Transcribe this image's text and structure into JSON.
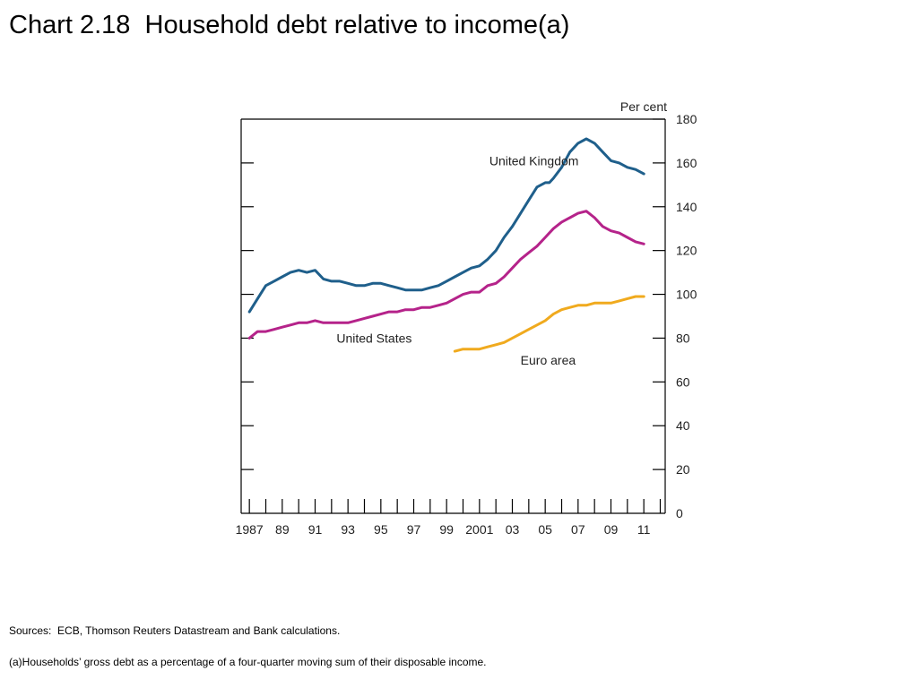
{
  "slide": {
    "title": "Chart 2.18  Household debt relative to income(a)",
    "sources": "Sources:  ECB, Thomson Reuters Datastream and Bank calculations.",
    "footnote": "(a)Households’ gross debt as a percentage of a four-quarter moving sum of their disposable income."
  },
  "chart_data": {
    "type": "line",
    "title": "Household debt relative to income(a)",
    "xlabel": "",
    "ylabel": "Per cent",
    "ylim": [
      0,
      180
    ],
    "xlim": [
      1986.5,
      2012.3
    ],
    "y_ticks": [
      0,
      20,
      40,
      60,
      80,
      100,
      120,
      140,
      160,
      180
    ],
    "x_ticks": [
      {
        "x": 1987,
        "label": "1987"
      },
      {
        "x": 1989,
        "label": "89"
      },
      {
        "x": 1991,
        "label": "91"
      },
      {
        "x": 1993,
        "label": "93"
      },
      {
        "x": 1995,
        "label": "95"
      },
      {
        "x": 1997,
        "label": "97"
      },
      {
        "x": 1999,
        "label": "99"
      },
      {
        "x": 2001,
        "label": "2001"
      },
      {
        "x": 2003,
        "label": "03"
      },
      {
        "x": 2005,
        "label": "05"
      },
      {
        "x": 2007,
        "label": "07"
      },
      {
        "x": 2009,
        "label": "09"
      },
      {
        "x": 2011,
        "label": "11"
      }
    ],
    "grid": false,
    "series": [
      {
        "name": "United Kingdom",
        "color": "#1f5f8b",
        "points": [
          [
            1987.0,
            92
          ],
          [
            1987.5,
            98
          ],
          [
            1988.0,
            104
          ],
          [
            1988.5,
            106
          ],
          [
            1989.0,
            108
          ],
          [
            1989.5,
            110
          ],
          [
            1990.0,
            111
          ],
          [
            1990.5,
            110
          ],
          [
            1991.0,
            111
          ],
          [
            1991.5,
            107
          ],
          [
            1992.0,
            106
          ],
          [
            1992.5,
            106
          ],
          [
            1993.0,
            105
          ],
          [
            1993.5,
            104
          ],
          [
            1994.0,
            104
          ],
          [
            1994.5,
            105
          ],
          [
            1995.0,
            105
          ],
          [
            1995.5,
            104
          ],
          [
            1996.0,
            103
          ],
          [
            1996.5,
            102
          ],
          [
            1997.0,
            102
          ],
          [
            1997.5,
            102
          ],
          [
            1998.0,
            103
          ],
          [
            1998.5,
            104
          ],
          [
            1999.0,
            106
          ],
          [
            1999.5,
            108
          ],
          [
            2000.0,
            110
          ],
          [
            2000.5,
            112
          ],
          [
            2001.0,
            113
          ],
          [
            2001.5,
            116
          ],
          [
            2002.0,
            120
          ],
          [
            2002.5,
            126
          ],
          [
            2003.0,
            131
          ],
          [
            2003.5,
            137
          ],
          [
            2004.0,
            143
          ],
          [
            2004.5,
            149
          ],
          [
            2005.0,
            151
          ],
          [
            2005.25,
            151
          ],
          [
            2005.5,
            153
          ],
          [
            2006.0,
            158
          ],
          [
            2006.5,
            165
          ],
          [
            2007.0,
            169
          ],
          [
            2007.5,
            171
          ],
          [
            2008.0,
            169
          ],
          [
            2008.5,
            165
          ],
          [
            2009.0,
            161
          ],
          [
            2009.5,
            160
          ],
          [
            2010.0,
            158
          ],
          [
            2010.5,
            157
          ],
          [
            2011.0,
            155
          ]
        ]
      },
      {
        "name": "United States",
        "color": "#b5238a",
        "points": [
          [
            1987.0,
            80
          ],
          [
            1987.5,
            83
          ],
          [
            1988.0,
            83
          ],
          [
            1988.5,
            84
          ],
          [
            1989.0,
            85
          ],
          [
            1989.5,
            86
          ],
          [
            1990.0,
            87
          ],
          [
            1990.5,
            87
          ],
          [
            1991.0,
            88
          ],
          [
            1991.5,
            87
          ],
          [
            1992.0,
            87
          ],
          [
            1992.5,
            87
          ],
          [
            1993.0,
            87
          ],
          [
            1993.5,
            88
          ],
          [
            1994.0,
            89
          ],
          [
            1994.5,
            90
          ],
          [
            1995.0,
            91
          ],
          [
            1995.5,
            92
          ],
          [
            1996.0,
            92
          ],
          [
            1996.5,
            93
          ],
          [
            1997.0,
            93
          ],
          [
            1997.5,
            94
          ],
          [
            1998.0,
            94
          ],
          [
            1998.5,
            95
          ],
          [
            1999.0,
            96
          ],
          [
            1999.5,
            98
          ],
          [
            2000.0,
            100
          ],
          [
            2000.5,
            101
          ],
          [
            2001.0,
            101
          ],
          [
            2001.5,
            104
          ],
          [
            2002.0,
            105
          ],
          [
            2002.5,
            108
          ],
          [
            2003.0,
            112
          ],
          [
            2003.5,
            116
          ],
          [
            2004.0,
            119
          ],
          [
            2004.5,
            122
          ],
          [
            2005.0,
            126
          ],
          [
            2005.5,
            130
          ],
          [
            2006.0,
            133
          ],
          [
            2006.5,
            135
          ],
          [
            2007.0,
            137
          ],
          [
            2007.5,
            138
          ],
          [
            2008.0,
            135
          ],
          [
            2008.5,
            131
          ],
          [
            2009.0,
            129
          ],
          [
            2009.5,
            128
          ],
          [
            2010.0,
            126
          ],
          [
            2010.5,
            124
          ],
          [
            2011.0,
            123
          ]
        ]
      },
      {
        "name": "Euro area",
        "color": "#f0aa1e",
        "points": [
          [
            1999.5,
            74
          ],
          [
            2000.0,
            75
          ],
          [
            2000.5,
            75
          ],
          [
            2001.0,
            75
          ],
          [
            2001.5,
            76
          ],
          [
            2002.0,
            77
          ],
          [
            2002.5,
            78
          ],
          [
            2003.0,
            80
          ],
          [
            2003.5,
            82
          ],
          [
            2004.0,
            84
          ],
          [
            2004.5,
            86
          ],
          [
            2005.0,
            88
          ],
          [
            2005.5,
            91
          ],
          [
            2006.0,
            93
          ],
          [
            2006.5,
            94
          ],
          [
            2007.0,
            95
          ],
          [
            2007.5,
            95
          ],
          [
            2008.0,
            96
          ],
          [
            2008.5,
            96
          ],
          [
            2009.0,
            96
          ],
          [
            2009.5,
            97
          ],
          [
            2010.0,
            98
          ],
          [
            2010.5,
            99
          ],
          [
            2011.0,
            99
          ]
        ]
      }
    ],
    "annotations": [
      {
        "text": "United Kingdom",
        "series": "United Kingdom",
        "x": 2001.6,
        "y": 159
      },
      {
        "text": "United States",
        "series": "United States",
        "x": 1992.3,
        "y": 78
      },
      {
        "text": "Euro area",
        "series": "Euro area",
        "x": 2003.5,
        "y": 68
      }
    ]
  }
}
